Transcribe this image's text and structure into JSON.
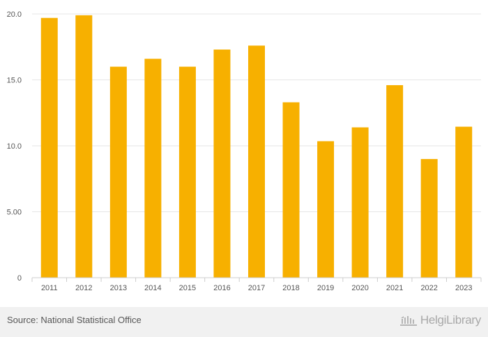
{
  "chart_data": {
    "type": "bar",
    "categories": [
      "2011",
      "2012",
      "2013",
      "2014",
      "2015",
      "2016",
      "2017",
      "2018",
      "2019",
      "2020",
      "2021",
      "2022",
      "2023"
    ],
    "values": [
      19.7,
      19.9,
      16.0,
      16.6,
      16.0,
      17.3,
      17.6,
      13.3,
      10.35,
      11.4,
      14.6,
      9.0,
      11.45
    ],
    "ylim": [
      0,
      20
    ],
    "yticks": [
      0,
      5,
      10,
      15,
      20
    ],
    "ytick_labels": [
      "0",
      "5.00",
      "10.0",
      "15.0",
      "20.0"
    ],
    "title": "",
    "xlabel": "",
    "ylabel": "",
    "bar_color": "#f7b000",
    "grid": true
  },
  "footer": {
    "source": "Source: National Statistical Office",
    "brand": "HelgiLibrary"
  }
}
